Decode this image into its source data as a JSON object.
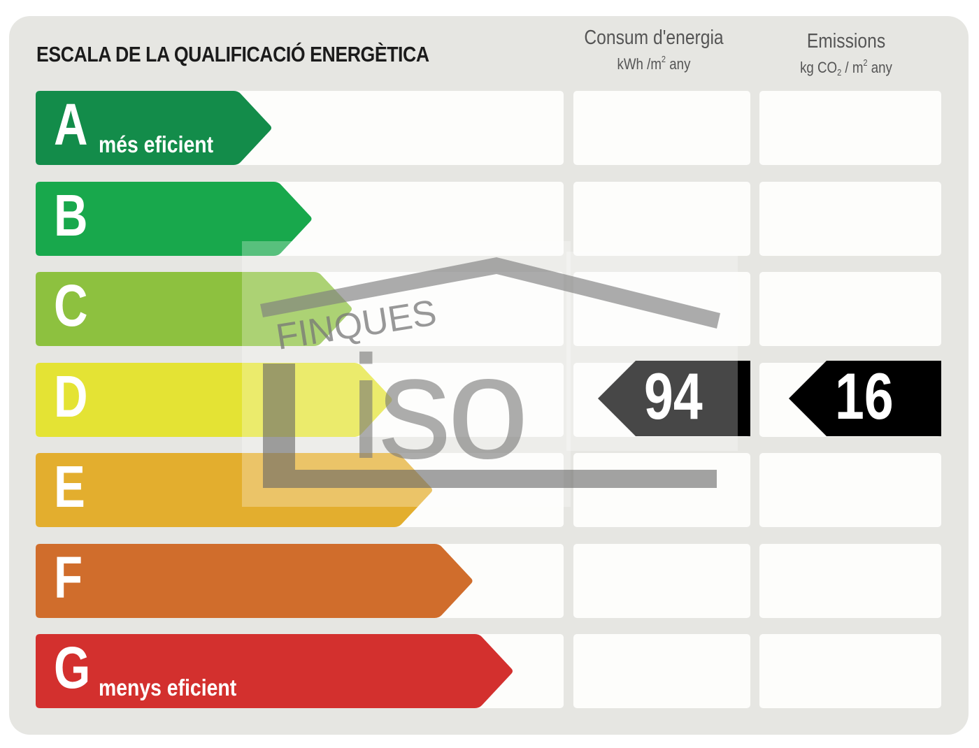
{
  "title": "ESCALA DE LA QUALIFICACIÓ ENERGÈTICA",
  "columns": {
    "energy": {
      "label": "Consum d'energia",
      "unit_a": "kWh /m",
      "unit_sup": "2",
      "unit_b": " any"
    },
    "emissions": {
      "label": "Emissions",
      "unit_a": "kg CO",
      "unit_sub": "2",
      "unit_b": " / m",
      "unit_sup": "2",
      "unit_c": " any"
    }
  },
  "bands": [
    {
      "letter": "A",
      "label": "més eficient",
      "color": "#138c4a"
    },
    {
      "letter": "B",
      "label": "",
      "color": "#18a84c"
    },
    {
      "letter": "C",
      "label": "",
      "color": "#8dc13f"
    },
    {
      "letter": "D",
      "label": "",
      "color": "#e4e334"
    },
    {
      "letter": "E",
      "label": "",
      "color": "#e3ae2e"
    },
    {
      "letter": "F",
      "label": "",
      "color": "#d06d2c"
    },
    {
      "letter": "G",
      "label": "menys eficient",
      "color": "#d3302e"
    }
  ],
  "rating": {
    "class": "D",
    "energy_value": "94",
    "emissions_value": "16",
    "color": "#000000"
  },
  "watermark": {
    "line1": "FINQUES",
    "logo_text": "iso"
  }
}
